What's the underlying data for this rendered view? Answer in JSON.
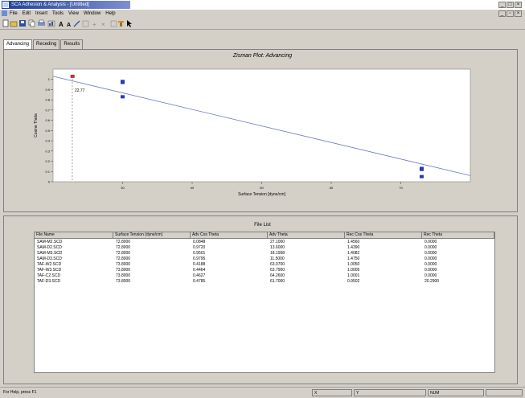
{
  "window": {
    "title": "SCA Adhesion & Analysis - [Untitled]"
  },
  "menu": [
    "File",
    "Edit",
    "Insert",
    "Tools",
    "View",
    "Window",
    "Help"
  ],
  "tabs": [
    {
      "label": "Advancing"
    },
    {
      "label": "Receding"
    },
    {
      "label": "Results"
    }
  ],
  "chart_data": {
    "type": "scatter",
    "title": "Zisman Plot: Advancing",
    "xlabel": "Surface Tension [dyne/cm]",
    "ylabel": "Cosine Theta",
    "xlim": [
      20,
      80
    ],
    "ylim": [
      0,
      1.1
    ],
    "xticks": [
      30,
      40,
      50,
      60,
      70
    ],
    "yticks": [
      0,
      0.1,
      0.2,
      0.3,
      0.4,
      0.5,
      0.6,
      0.7,
      0.8,
      0.9,
      1.0
    ],
    "critical_label": "22.77",
    "critical_x": 22.77,
    "fit_line": {
      "x": [
        20,
        80
      ],
      "y": [
        1.03,
        0.06
      ]
    },
    "points": [
      {
        "x": 22.8,
        "y": 1.03,
        "color": "#c03030"
      },
      {
        "x": 30.0,
        "y": 0.98,
        "color": "#2a3ab0"
      },
      {
        "x": 30.0,
        "y": 0.97,
        "color": "#2a3ab0"
      },
      {
        "x": 30.0,
        "y": 0.83,
        "color": "#2a3ab0"
      },
      {
        "x": 73.0,
        "y": 0.13,
        "color": "#2a3ab0"
      },
      {
        "x": 73.0,
        "y": 0.12,
        "color": "#2a3ab0"
      },
      {
        "x": 73.0,
        "y": 0.05,
        "color": "#2a3ab0"
      }
    ]
  },
  "filelist": {
    "title": "File List",
    "columns": [
      "File Name",
      "Surface Tension (dyne/cm)",
      "Adv Cos Theta",
      "Adv Theta",
      "Rec Cos Theta",
      "Rec Theta"
    ],
    "rows": [
      [
        "SAM-M2.SCD",
        "72.8000",
        "0.0848",
        "27.1000",
        "1.4560",
        "0.0000"
      ],
      [
        "SAM-D2.SCD",
        "72.8000",
        "0.9720",
        "13.6000",
        "1.4390",
        "0.0000"
      ],
      [
        "SAM-M3.SCD",
        "72.8000",
        "0.9501",
        "18.1958",
        "1.4082",
        "0.0000"
      ],
      [
        "SAM-D3.SCD",
        "72.8000",
        "0.9795",
        "11.5000",
        "1.4750",
        "0.0000"
      ],
      [
        "TAF-W2.SCD",
        "73.8000",
        "0.4188",
        "63.0700",
        "1.0050",
        "0.0000"
      ],
      [
        "TAF-W3.SCD",
        "73.8000",
        "0.4464",
        "63.7900",
        "1.0005",
        "0.0000"
      ],
      [
        "TAF-C2.SCD",
        "73.8000",
        "0.4627",
        "64.2600",
        "1.0001",
        "0.0000"
      ],
      [
        "TAF-D3.SCD",
        "73.8000",
        "0.4785",
        "61.7000",
        "0.9502",
        "20.2900"
      ]
    ]
  },
  "status": {
    "left": "For Help, press F1",
    "c2": "X",
    "c3": "Y",
    "c4": "NUM"
  }
}
